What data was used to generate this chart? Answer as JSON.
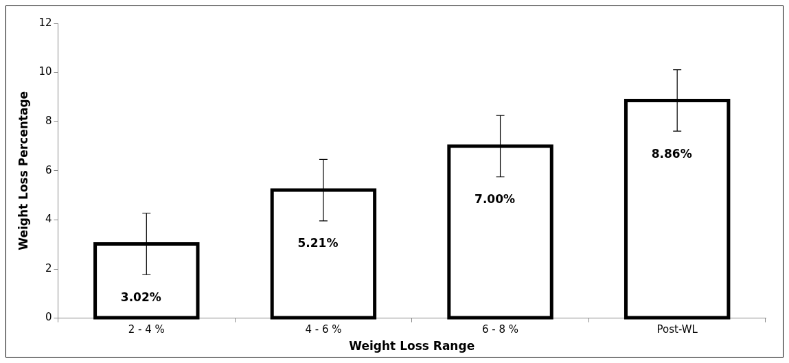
{
  "chart_data": {
    "type": "bar",
    "xlabel": "Weight Loss Range",
    "ylabel": "Weight Loss Percentage",
    "categories": [
      "2 - 4 %",
      "4 - 6 %",
      "6 - 8 %",
      "Post-WL"
    ],
    "values": [
      3.02,
      5.21,
      7.0,
      8.86
    ],
    "errors": [
      1.25,
      1.25,
      1.25,
      1.25
    ],
    "value_labels": [
      "3.02%",
      "5.21%",
      "7.00%",
      "8.86%"
    ],
    "color": "#000000",
    "ylim": [
      0,
      12
    ],
    "yticks": [
      0,
      2,
      4,
      6,
      8,
      10,
      12
    ],
    "grid": false,
    "legend": false
  }
}
